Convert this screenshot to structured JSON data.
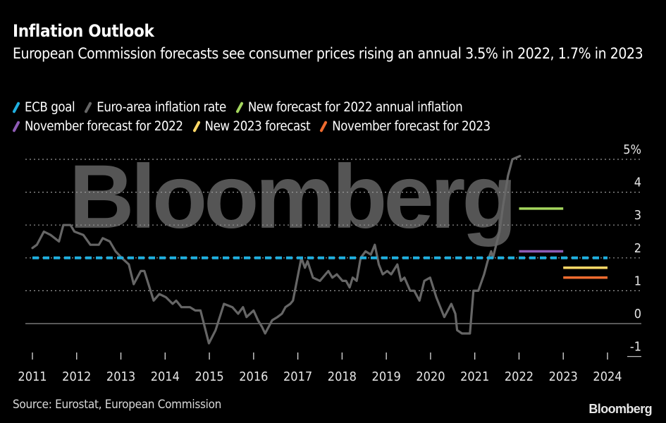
{
  "header": {
    "title": "Inflation Outlook",
    "subtitle": "European Commission forecasts see consumer prices rising an annual 3.5% in 2022, 1.7% in 2023"
  },
  "legend": [
    {
      "label": "ECB goal",
      "color": "#1fb0e0"
    },
    {
      "label": "Euro-area inflation rate",
      "color": "#666666"
    },
    {
      "label": "New forecast for 2022 annual inflation",
      "color": "#a4d65e"
    },
    {
      "label": "November forecast for 2022",
      "color": "#8e5bb5"
    },
    {
      "label": "New 2023 forecast",
      "color": "#ffd866"
    },
    {
      "label": "November forecast for 2023",
      "color": "#ee6b2f"
    }
  ],
  "footer": {
    "source": "Source: Eurostat, European Commission",
    "brand": "Bloomberg"
  },
  "watermark": "Bloomberg",
  "chart_data": {
    "type": "line",
    "title": "Inflation Outlook",
    "subtitle": "European Commission forecasts see consumer prices rising an annual 3.5% in 2022, 1.7% in 2023",
    "xlabel": "",
    "ylabel": "%",
    "xlim": [
      2011,
      2024
    ],
    "ylim": [
      -1,
      5
    ],
    "x_ticks": [
      "2011",
      "2012",
      "2013",
      "2014",
      "2015",
      "2016",
      "2017",
      "2018",
      "2019",
      "2020",
      "2021",
      "2022",
      "2023",
      "2024"
    ],
    "y_ticks": [
      {
        "value": 5,
        "label": "5%"
      },
      {
        "value": 4,
        "label": "4"
      },
      {
        "value": 3,
        "label": "3"
      },
      {
        "value": 2,
        "label": "2"
      },
      {
        "value": 1,
        "label": "1"
      },
      {
        "value": 0,
        "label": "0"
      },
      {
        "value": -1,
        "label": "-1"
      }
    ],
    "grid": "horizontal dotted",
    "legend_position": "top",
    "series": [
      {
        "name": "Euro-area inflation rate",
        "color": "#666666",
        "x": [
          2011.0,
          2011.1,
          2011.26,
          2011.41,
          2011.6,
          2011.7,
          2011.86,
          2011.95,
          2012.15,
          2012.31,
          2012.5,
          2012.59,
          2012.75,
          2012.88,
          2013.02,
          2013.18,
          2013.29,
          2013.45,
          2013.53,
          2013.74,
          2013.87,
          2014.02,
          2014.17,
          2014.25,
          2014.37,
          2014.56,
          2014.68,
          2014.8,
          2014.99,
          2015.14,
          2015.33,
          2015.52,
          2015.65,
          2015.76,
          2015.84,
          2016.0,
          2016.1,
          2016.19,
          2016.26,
          2016.42,
          2016.54,
          2016.64,
          2016.72,
          2016.83,
          2016.89,
          2017.08,
          2017.16,
          2017.22,
          2017.34,
          2017.5,
          2017.69,
          2017.78,
          2017.88,
          2018.01,
          2018.09,
          2018.17,
          2018.24,
          2018.33,
          2018.42,
          2018.53,
          2018.65,
          2018.74,
          2018.83,
          2018.92,
          2019.02,
          2019.11,
          2019.25,
          2019.33,
          2019.41,
          2019.54,
          2019.63,
          2019.75,
          2019.86,
          2019.99,
          2020.13,
          2020.31,
          2020.47,
          2020.56,
          2020.6,
          2020.71,
          2020.89,
          2020.97,
          2021.08,
          2021.21,
          2021.29,
          2021.37,
          2021.41,
          2021.56,
          2021.64,
          2021.75,
          2021.85,
          2022.02
        ],
        "values": [
          2.3,
          2.4,
          2.8,
          2.7,
          2.5,
          3.0,
          3.0,
          2.8,
          2.7,
          2.4,
          2.4,
          2.6,
          2.5,
          2.2,
          2.0,
          1.8,
          1.2,
          1.6,
          1.6,
          0.7,
          0.9,
          0.8,
          0.6,
          0.7,
          0.5,
          0.5,
          0.4,
          0.4,
          -0.6,
          -0.2,
          0.6,
          0.5,
          0.3,
          0.5,
          0.2,
          0.4,
          0.1,
          -0.1,
          -0.3,
          0.1,
          0.2,
          0.3,
          0.5,
          0.6,
          0.7,
          2.0,
          1.7,
          1.9,
          1.4,
          1.3,
          1.6,
          1.4,
          1.5,
          1.3,
          1.3,
          1.1,
          1.4,
          1.3,
          2.0,
          2.2,
          2.1,
          2.4,
          1.8,
          1.5,
          1.6,
          1.5,
          1.8,
          1.3,
          1.4,
          1.0,
          1.0,
          0.7,
          1.3,
          1.4,
          0.8,
          0.2,
          0.6,
          0.3,
          -0.2,
          -0.3,
          -0.3,
          1.0,
          1.0,
          1.5,
          1.9,
          2.2,
          2.0,
          2.8,
          3.6,
          4.5,
          5.0,
          5.1
        ]
      },
      {
        "name": "ECB goal",
        "color": "#1fb0e0",
        "style": "dashed",
        "x": [
          2011.0,
          2024.0
        ],
        "values": [
          2.0,
          2.0
        ]
      },
      {
        "name": "New forecast for 2022 annual inflation",
        "color": "#a4d65e",
        "x": [
          2022.0,
          2023.0
        ],
        "values": [
          3.5,
          3.5
        ]
      },
      {
        "name": "November forecast for 2022",
        "color": "#8e5bb5",
        "x": [
          2022.0,
          2023.0
        ],
        "values": [
          2.2,
          2.2
        ]
      },
      {
        "name": "New 2023 forecast",
        "color": "#ffd866",
        "x": [
          2023.0,
          2024.0
        ],
        "values": [
          1.7,
          1.7
        ]
      },
      {
        "name": "November forecast for 2023",
        "color": "#ee6b2f",
        "x": [
          2023.0,
          2024.0
        ],
        "values": [
          1.4,
          1.4
        ]
      }
    ]
  }
}
